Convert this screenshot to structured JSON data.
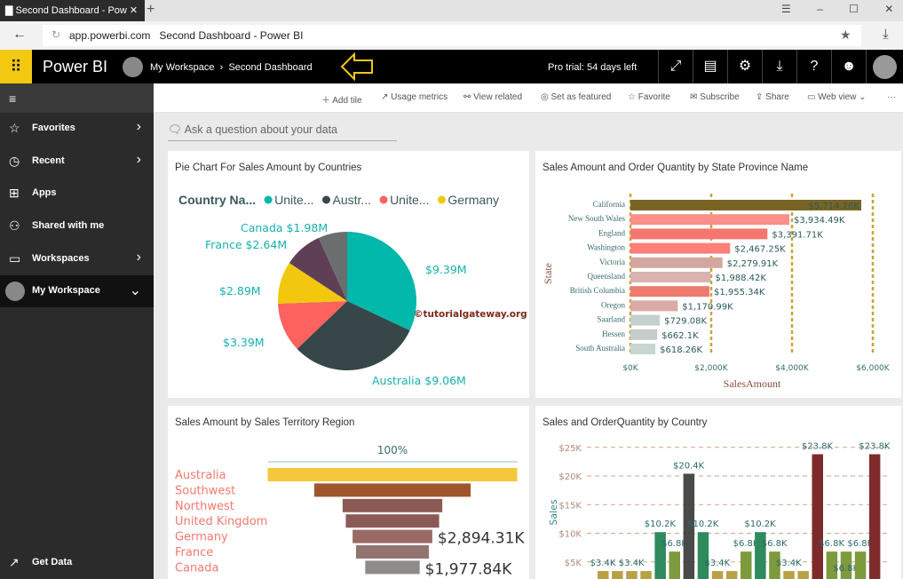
{
  "browser": {
    "tab_title": "Second Dashboard - Pow",
    "url": "app.powerbi.com",
    "page_title": "Second Dashboard - Power BI"
  },
  "header": {
    "brand": "Power BI",
    "workspace": "My Workspace",
    "dashboard": "Second Dashboard",
    "trial": "Pro trial: 54 days left"
  },
  "sidebar": {
    "items": [
      {
        "label": "Favorites",
        "icon": "star-icon"
      },
      {
        "label": "Recent",
        "icon": "clock-icon"
      },
      {
        "label": "Apps",
        "icon": "apps-icon"
      },
      {
        "label": "Shared with me",
        "icon": "share-icon"
      },
      {
        "label": "Workspaces",
        "icon": "workspaces-icon"
      },
      {
        "label": "My Workspace",
        "icon": "avatar"
      }
    ],
    "get_data": "Get Data"
  },
  "toolbar": {
    "add_tile": "Add tile",
    "usage": "Usage metrics",
    "view_related": "View related",
    "featured": "Set as featured",
    "favorite": "Favorite",
    "subscribe": "Subscribe",
    "share": "Share",
    "web_view": "Web view"
  },
  "qa": {
    "placeholder": "Ask a question about your data"
  },
  "watermark": "©tutorialgateway.org",
  "tiles": {
    "pie": "Pie Chart For Sales Amount by Countries",
    "bar": "Sales Amount and Order Quantity by State Province Name",
    "funnel": "Sales Amount by Sales Territory Region",
    "combo": "Sales and OrderQuantity by Country"
  },
  "chart_data": [
    {
      "type": "pie",
      "title": "Pie Chart For Sales Amount by Countries",
      "legend_title": "Country Na...",
      "legend": [
        "Unite...",
        "Austr...",
        "Unite...",
        "Germany"
      ],
      "legend_placement": "top",
      "slices": [
        {
          "name": "United States",
          "value": 9.39,
          "label": "$9.39M",
          "color": "#01b8aa"
        },
        {
          "name": "Australia",
          "value": 9.06,
          "label": "Australia $9.06M",
          "color": "#374649"
        },
        {
          "name": "United Kingdom",
          "value": 3.39,
          "label": "$3.39M",
          "color": "#fd625e"
        },
        {
          "name": "Germany",
          "value": 2.89,
          "label": "$2.89M",
          "color": "#f2c80f"
        },
        {
          "name": "France",
          "value": 2.64,
          "label": "France $2.64M",
          "color": "#5f3f55"
        },
        {
          "name": "Canada",
          "value": 1.98,
          "label": "Canada $1.98M",
          "color": "#6b6e6f"
        }
      ]
    },
    {
      "type": "bar",
      "orientation": "horizontal",
      "title": "Sales Amount and Order Quantity by State Province Name",
      "xlabel": "SalesAmount",
      "ylabel": "State",
      "xlim": [
        0,
        6000
      ],
      "xticks": [
        "$0K",
        "$2,000K",
        "$4,000K",
        "$6,000K"
      ],
      "grid": true,
      "categories": [
        "California",
        "New South Wales",
        "England",
        "Washington",
        "Victoria",
        "Queensland",
        "British Columbia",
        "Oregon",
        "Saarland",
        "Hessen",
        "South Australia"
      ],
      "values": [
        5714.26,
        3934.49,
        3391.71,
        2467.25,
        2279.91,
        1988.42,
        1955.34,
        1170.99,
        729.08,
        662.1,
        618.26
      ],
      "labels": [
        "$5,714.26K",
        "$3,934.49K",
        "$3,391.71K",
        "$2,467.25K",
        "$2,279.91K",
        "$1,988.42K",
        "$1,955.34K",
        "$1,170.99K",
        "$729.08K",
        "$662.1K",
        "$618.26K"
      ],
      "colors": [
        "#7a6424",
        "#fb8e88",
        "#f4776f",
        "#fd7f7a",
        "#d3a79f",
        "#d9b3af",
        "#ee7a6e",
        "#d9aaa6",
        "#c5d0cc",
        "#c5ccc9",
        "#c6d7d3"
      ]
    },
    {
      "type": "funnel",
      "title": "Sales Amount by Sales Territory Region",
      "top_label": "100%",
      "categories": [
        "Australia",
        "Southwest",
        "Northwest",
        "United Kingdom",
        "Germany",
        "France",
        "Canada"
      ],
      "values": [
        9061,
        5680,
        3620,
        3391,
        2894.31,
        2644,
        1977.84
      ],
      "labels": [
        "",
        "",
        "",
        "",
        "$2,894.31K",
        "",
        "$1,977.84K"
      ],
      "colors": [
        "#f5c73c",
        "#a0562d",
        "#8b5a55",
        "#8b5a55",
        "#9a6a66",
        "#917370",
        "#8f8b8a"
      ]
    },
    {
      "type": "bar",
      "title": "Sales and OrderQuantity by Country",
      "ylabel": "Sales",
      "ylim": [
        0,
        25
      ],
      "yticks": [
        "$5K",
        "$10K",
        "$15K",
        "$20K",
        "$25K"
      ],
      "grid": true,
      "values": [
        3.4,
        3.4,
        3.4,
        3.4,
        10.2,
        6.8,
        20.4,
        10.2,
        3.4,
        3.4,
        6.8,
        10.2,
        6.8,
        3.4,
        3.4,
        23.8,
        6.8,
        6.8,
        6.8,
        23.8
      ],
      "labels": [
        "$3.4K",
        "",
        "$3.4K",
        "",
        "$10.2K",
        "$6.8K",
        "$20.4K",
        "$10.2K",
        "$3.4K",
        "",
        "$6.8K",
        "$10.2K",
        "$6.8K",
        "$3.4K",
        "",
        "$23.8K",
        "$6.8K",
        "$6.8K",
        "$6.8K",
        "$23.8K"
      ],
      "colors": [
        "#b9a044",
        "#b9a044",
        "#b9a044",
        "#b9a044",
        "#2e8b5e",
        "#7d9a3c",
        "#4a4a48",
        "#2e8b5e",
        "#b9a044",
        "#b9a044",
        "#7d9a3c",
        "#2e8b5e",
        "#7d9a3c",
        "#b9a044",
        "#b9a044",
        "#7f2b2b",
        "#7d9a3c",
        "#7d9a3c",
        "#7d9a3c",
        "#7f2b2b"
      ]
    }
  ]
}
